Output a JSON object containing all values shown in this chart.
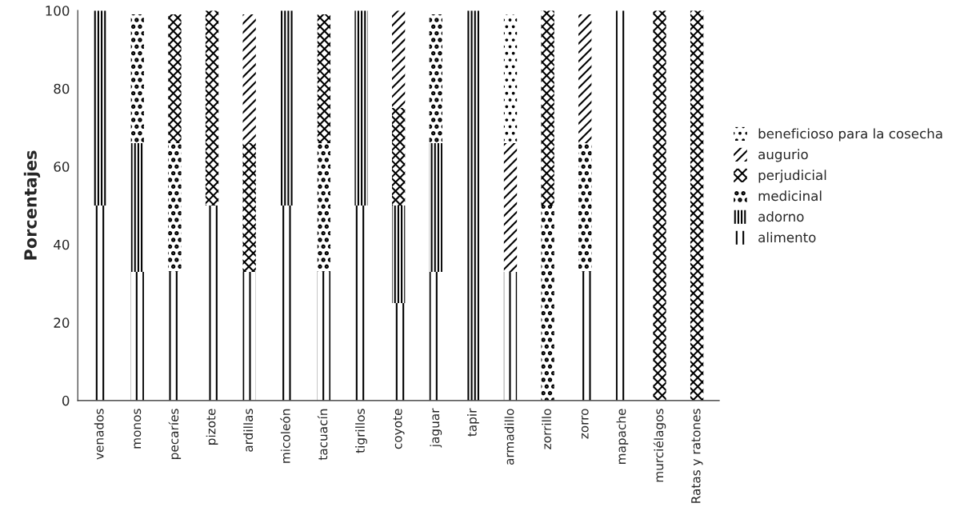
{
  "chart_data": {
    "type": "bar",
    "stacked": true,
    "ylabel": "Porcentajes",
    "categories": [
      "venados",
      "monos",
      "pecaríes",
      "pizote",
      "ardillas",
      "micoleón",
      "tacuacín",
      "tigrillos",
      "coyote",
      "jaguar",
      "tapir",
      "armadillo",
      "zorrillo",
      "zorro",
      "mapache",
      "murciélagos",
      "Ratas y ratones"
    ],
    "series": [
      {
        "name": "alimento",
        "color": "#000000",
        "values": [
          50,
          33,
          33,
          50,
          33,
          50,
          33,
          50,
          25,
          33,
          0,
          33,
          0,
          33,
          100,
          0,
          0
        ]
      },
      {
        "name": "adorno",
        "color": "#000000",
        "values": [
          50,
          33,
          0,
          0,
          0,
          50,
          0,
          50,
          25,
          33,
          100,
          0,
          0,
          0,
          0,
          0,
          0
        ]
      },
      {
        "name": "medicinal",
        "color": "#000000",
        "values": [
          0,
          33,
          33,
          0,
          0,
          0,
          33,
          0,
          0,
          33,
          0,
          0,
          50,
          33,
          0,
          0,
          0
        ]
      },
      {
        "name": "perjudicial",
        "color": "#000000",
        "values": [
          0,
          0,
          33,
          50,
          33,
          0,
          33,
          0,
          25,
          0,
          0,
          0,
          50,
          0,
          0,
          100,
          100
        ]
      },
      {
        "name": "augurio",
        "color": "#000000",
        "values": [
          0,
          0,
          0,
          0,
          33,
          0,
          0,
          0,
          25,
          0,
          0,
          33,
          0,
          33,
          0,
          0,
          0
        ]
      },
      {
        "name": "beneficioso para la cosecha",
        "color": "#000000",
        "values": [
          0,
          0,
          0,
          0,
          0,
          0,
          0,
          0,
          0,
          0,
          0,
          33,
          0,
          0,
          0,
          0,
          0
        ]
      }
    ],
    "ylim": [
      0,
      100
    ],
    "yticks": [
      0,
      20,
      40,
      60,
      80,
      100
    ],
    "grid": false,
    "legend": "right"
  }
}
